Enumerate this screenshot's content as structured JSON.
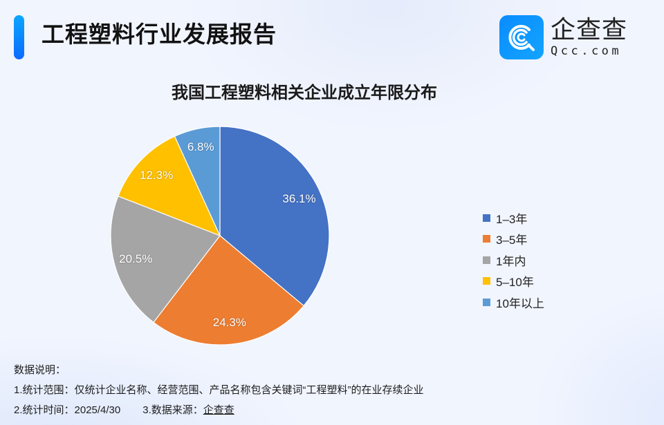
{
  "header": {
    "title": "工程塑料行业发展报告",
    "accent_color": "#0a7dff"
  },
  "logo": {
    "cn": "企查查",
    "en": "Qcc.com",
    "icon": "qcc-logo-icon",
    "color": "#0a8cff"
  },
  "chart_data": {
    "type": "pie",
    "title": "我国工程塑料相关企业成立年限分布",
    "categories": [
      "1-3年",
      "3-5年",
      "1年内",
      "5-10年",
      "10年以上"
    ],
    "values": [
      36.1,
      24.3,
      20.5,
      12.3,
      6.8
    ],
    "labels": [
      "36.1%",
      "24.3%",
      "20.5%",
      "12.3%",
      "6.8%"
    ],
    "colors": [
      "#4472c4",
      "#ed7d31",
      "#a5a5a5",
      "#ffc000",
      "#5b9bd5"
    ],
    "start_angle": "12 o'clock",
    "direction": "clockwise",
    "legend_position": "right",
    "unit": "%"
  },
  "legend": {
    "items": [
      {
        "label": "1–3年",
        "color": "#4472c4"
      },
      {
        "label": "3–5年",
        "color": "#ed7d31"
      },
      {
        "label": "1年内",
        "color": "#a5a5a5"
      },
      {
        "label": "5–10年",
        "color": "#ffc000"
      },
      {
        "label": "10年以上",
        "color": "#5b9bd5"
      }
    ]
  },
  "notes": {
    "heading": "数据说明：",
    "scope": "1.统计范围：仅统计企业名称、经营范围、产品名称包含关键词“工程塑料”的在业存续企业",
    "time": "2.统计时间：2025/4/30",
    "source_prefix": "3.数据来源：",
    "source_name": "企查查"
  }
}
